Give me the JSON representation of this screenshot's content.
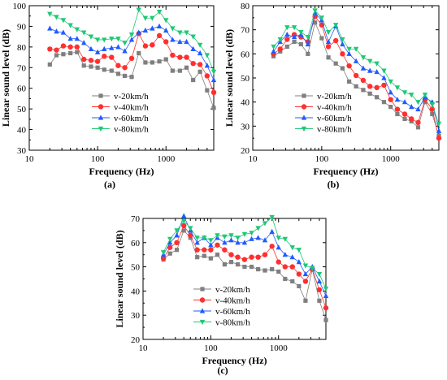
{
  "chart_data": [
    {
      "panel_label": "(a)",
      "type": "line",
      "xlabel": "Frequency (Hz)",
      "ylabel": "Linear sound level (dB)",
      "xscale": "log",
      "xlim": [
        10,
        5000
      ],
      "ylim": [
        30,
        100
      ],
      "xticks": [
        10,
        100,
        1000
      ],
      "xtick_labels": [
        "10",
        "100",
        "1000"
      ],
      "yticks": [
        30,
        40,
        50,
        60,
        70,
        80,
        90,
        100
      ],
      "ytick_labels": [
        "30",
        "40",
        "50",
        "60",
        "70",
        "80",
        "90",
        "100"
      ],
      "legend_position": "center",
      "x": [
        20,
        25,
        31.5,
        40,
        50,
        63,
        80,
        100,
        125,
        160,
        200,
        250,
        315,
        400,
        500,
        630,
        800,
        1000,
        1250,
        1600,
        2000,
        2500,
        3150,
        4000,
        5000
      ],
      "series": [
        {
          "name": "v-20km/h",
          "values": [
            71.5,
            76,
            76.5,
            77,
            77.5,
            71,
            70.5,
            70,
            69,
            68.5,
            67,
            66,
            65.5,
            77,
            72.5,
            72.5,
            73,
            74,
            68.5,
            68.5,
            70,
            64,
            68,
            59,
            50.5
          ]
        },
        {
          "name": "v-40km/h",
          "values": [
            79,
            78.5,
            80.5,
            80,
            80,
            74,
            73.5,
            73,
            75.5,
            75,
            71,
            70,
            74.5,
            86.5,
            80.5,
            81,
            85.5,
            82.5,
            76,
            75,
            75,
            72,
            71.5,
            66,
            58
          ]
        },
        {
          "name": "v-60km/h",
          "values": [
            89,
            87.5,
            87,
            84,
            84,
            82,
            79,
            77.5,
            79,
            79.5,
            80,
            78,
            83.5,
            87,
            88,
            89,
            90,
            88,
            83.5,
            82.5,
            82.5,
            79,
            77,
            71,
            64
          ]
        },
        {
          "name": "v-80km/h",
          "values": [
            96,
            94.5,
            93,
            90.5,
            88.5,
            87,
            85,
            83.5,
            83.5,
            84,
            84,
            82,
            86,
            98,
            94,
            94,
            97,
            93,
            89,
            87,
            87,
            85,
            81,
            76,
            68
          ]
        }
      ]
    },
    {
      "panel_label": "(b)",
      "type": "line",
      "xlabel": "Frequency (Hz)",
      "ylabel": "Linear sound level (dB)",
      "xscale": "log",
      "xlim": [
        10,
        5000
      ],
      "ylim": [
        20,
        80
      ],
      "xticks": [
        10,
        100,
        1000
      ],
      "xtick_labels": [
        "10",
        "100",
        "1000"
      ],
      "yticks": [
        20,
        30,
        40,
        50,
        60,
        70,
        80
      ],
      "ytick_labels": [
        "20",
        "30",
        "40",
        "50",
        "60",
        "70",
        "80"
      ],
      "legend_position": "bottom-left",
      "x": [
        20,
        25,
        31.5,
        40,
        50,
        63,
        80,
        100,
        125,
        160,
        200,
        250,
        315,
        400,
        500,
        630,
        800,
        1000,
        1250,
        1600,
        2000,
        2500,
        3150,
        4000,
        5000
      ],
      "series": [
        {
          "name": "v-20km/h",
          "values": [
            59,
            61,
            63,
            65,
            64,
            60,
            73,
            66.5,
            58.5,
            56,
            54,
            48.5,
            46.5,
            45,
            43.5,
            42,
            40,
            38,
            35,
            33,
            32,
            29.5,
            40,
            35,
            26
          ]
        },
        {
          "name": "v-40km/h",
          "values": [
            60,
            62,
            66,
            68,
            67,
            65,
            75.5,
            72,
            63,
            65.5,
            60,
            55,
            51,
            49,
            46.5,
            46,
            47,
            41,
            37,
            35,
            33,
            31.5,
            41,
            37,
            25
          ]
        },
        {
          "name": "v-60km/h",
          "values": [
            61,
            65,
            68,
            67,
            68,
            64,
            77,
            74,
            65,
            71.5,
            64,
            60,
            57,
            54,
            53,
            52.5,
            50,
            44,
            41,
            40,
            38,
            37,
            42,
            40,
            28
          ]
        },
        {
          "name": "v-80km/h",
          "values": [
            63,
            66,
            71,
            71,
            69,
            67,
            78,
            75,
            69,
            72,
            66,
            62,
            62,
            58.5,
            57,
            56,
            53,
            48.5,
            46,
            44,
            43,
            40,
            43,
            39,
            31
          ]
        }
      ]
    },
    {
      "panel_label": "(c)",
      "type": "line",
      "xlabel": "Frequency (Hz)",
      "ylabel": "Linear sound level (dB)",
      "xscale": "log",
      "xlim": [
        10,
        5000
      ],
      "ylim": [
        20,
        70
      ],
      "xticks": [
        10,
        100,
        1000
      ],
      "xtick_labels": [
        "10",
        "100",
        "1000"
      ],
      "yticks": [
        20,
        30,
        40,
        50,
        60,
        70
      ],
      "ytick_labels": [
        "20",
        "30",
        "40",
        "50",
        "60",
        "70"
      ],
      "legend_position": "bottom-left",
      "x": [
        20,
        25,
        31.5,
        40,
        50,
        63,
        80,
        100,
        125,
        160,
        200,
        250,
        315,
        400,
        500,
        630,
        800,
        1000,
        1250,
        1600,
        2000,
        2500,
        3150,
        4000,
        5000
      ],
      "series": [
        {
          "name": "v-20km/h",
          "values": [
            53,
            55.5,
            57,
            65,
            62,
            54,
            54.5,
            53.5,
            55,
            51,
            52,
            51,
            50,
            50,
            49,
            48.5,
            49,
            48,
            45,
            44,
            42,
            36,
            49,
            36,
            28
          ]
        },
        {
          "name": "v-40km/h",
          "values": [
            53.5,
            58,
            60,
            67,
            63,
            57,
            57,
            57,
            59,
            57,
            55,
            54,
            53,
            54,
            54,
            55,
            58.5,
            52,
            50,
            50,
            47,
            44,
            49,
            40.5,
            33
          ]
        },
        {
          "name": "v-60km/h",
          "values": [
            55,
            60,
            63,
            71,
            65,
            60,
            62,
            59,
            62,
            60,
            61,
            60,
            60,
            61.5,
            62,
            61,
            64.5,
            58,
            55,
            54,
            52,
            47,
            50,
            44,
            38
          ]
        },
        {
          "name": "v-80km/h",
          "values": [
            56,
            61.5,
            65,
            69,
            66,
            62,
            62,
            61,
            63,
            62.5,
            63,
            62,
            63.5,
            64,
            66,
            68,
            70.5,
            62,
            61.5,
            58,
            57,
            50.5,
            49.5,
            47,
            41
          ]
        }
      ]
    }
  ],
  "series_style": [
    {
      "color": "#7f7f7f",
      "marker": "square"
    },
    {
      "color": "#ff2f2f",
      "marker": "circle"
    },
    {
      "color": "#1f5bff",
      "marker": "triangle-up"
    },
    {
      "color": "#1fc876",
      "marker": "triangle-down"
    }
  ]
}
